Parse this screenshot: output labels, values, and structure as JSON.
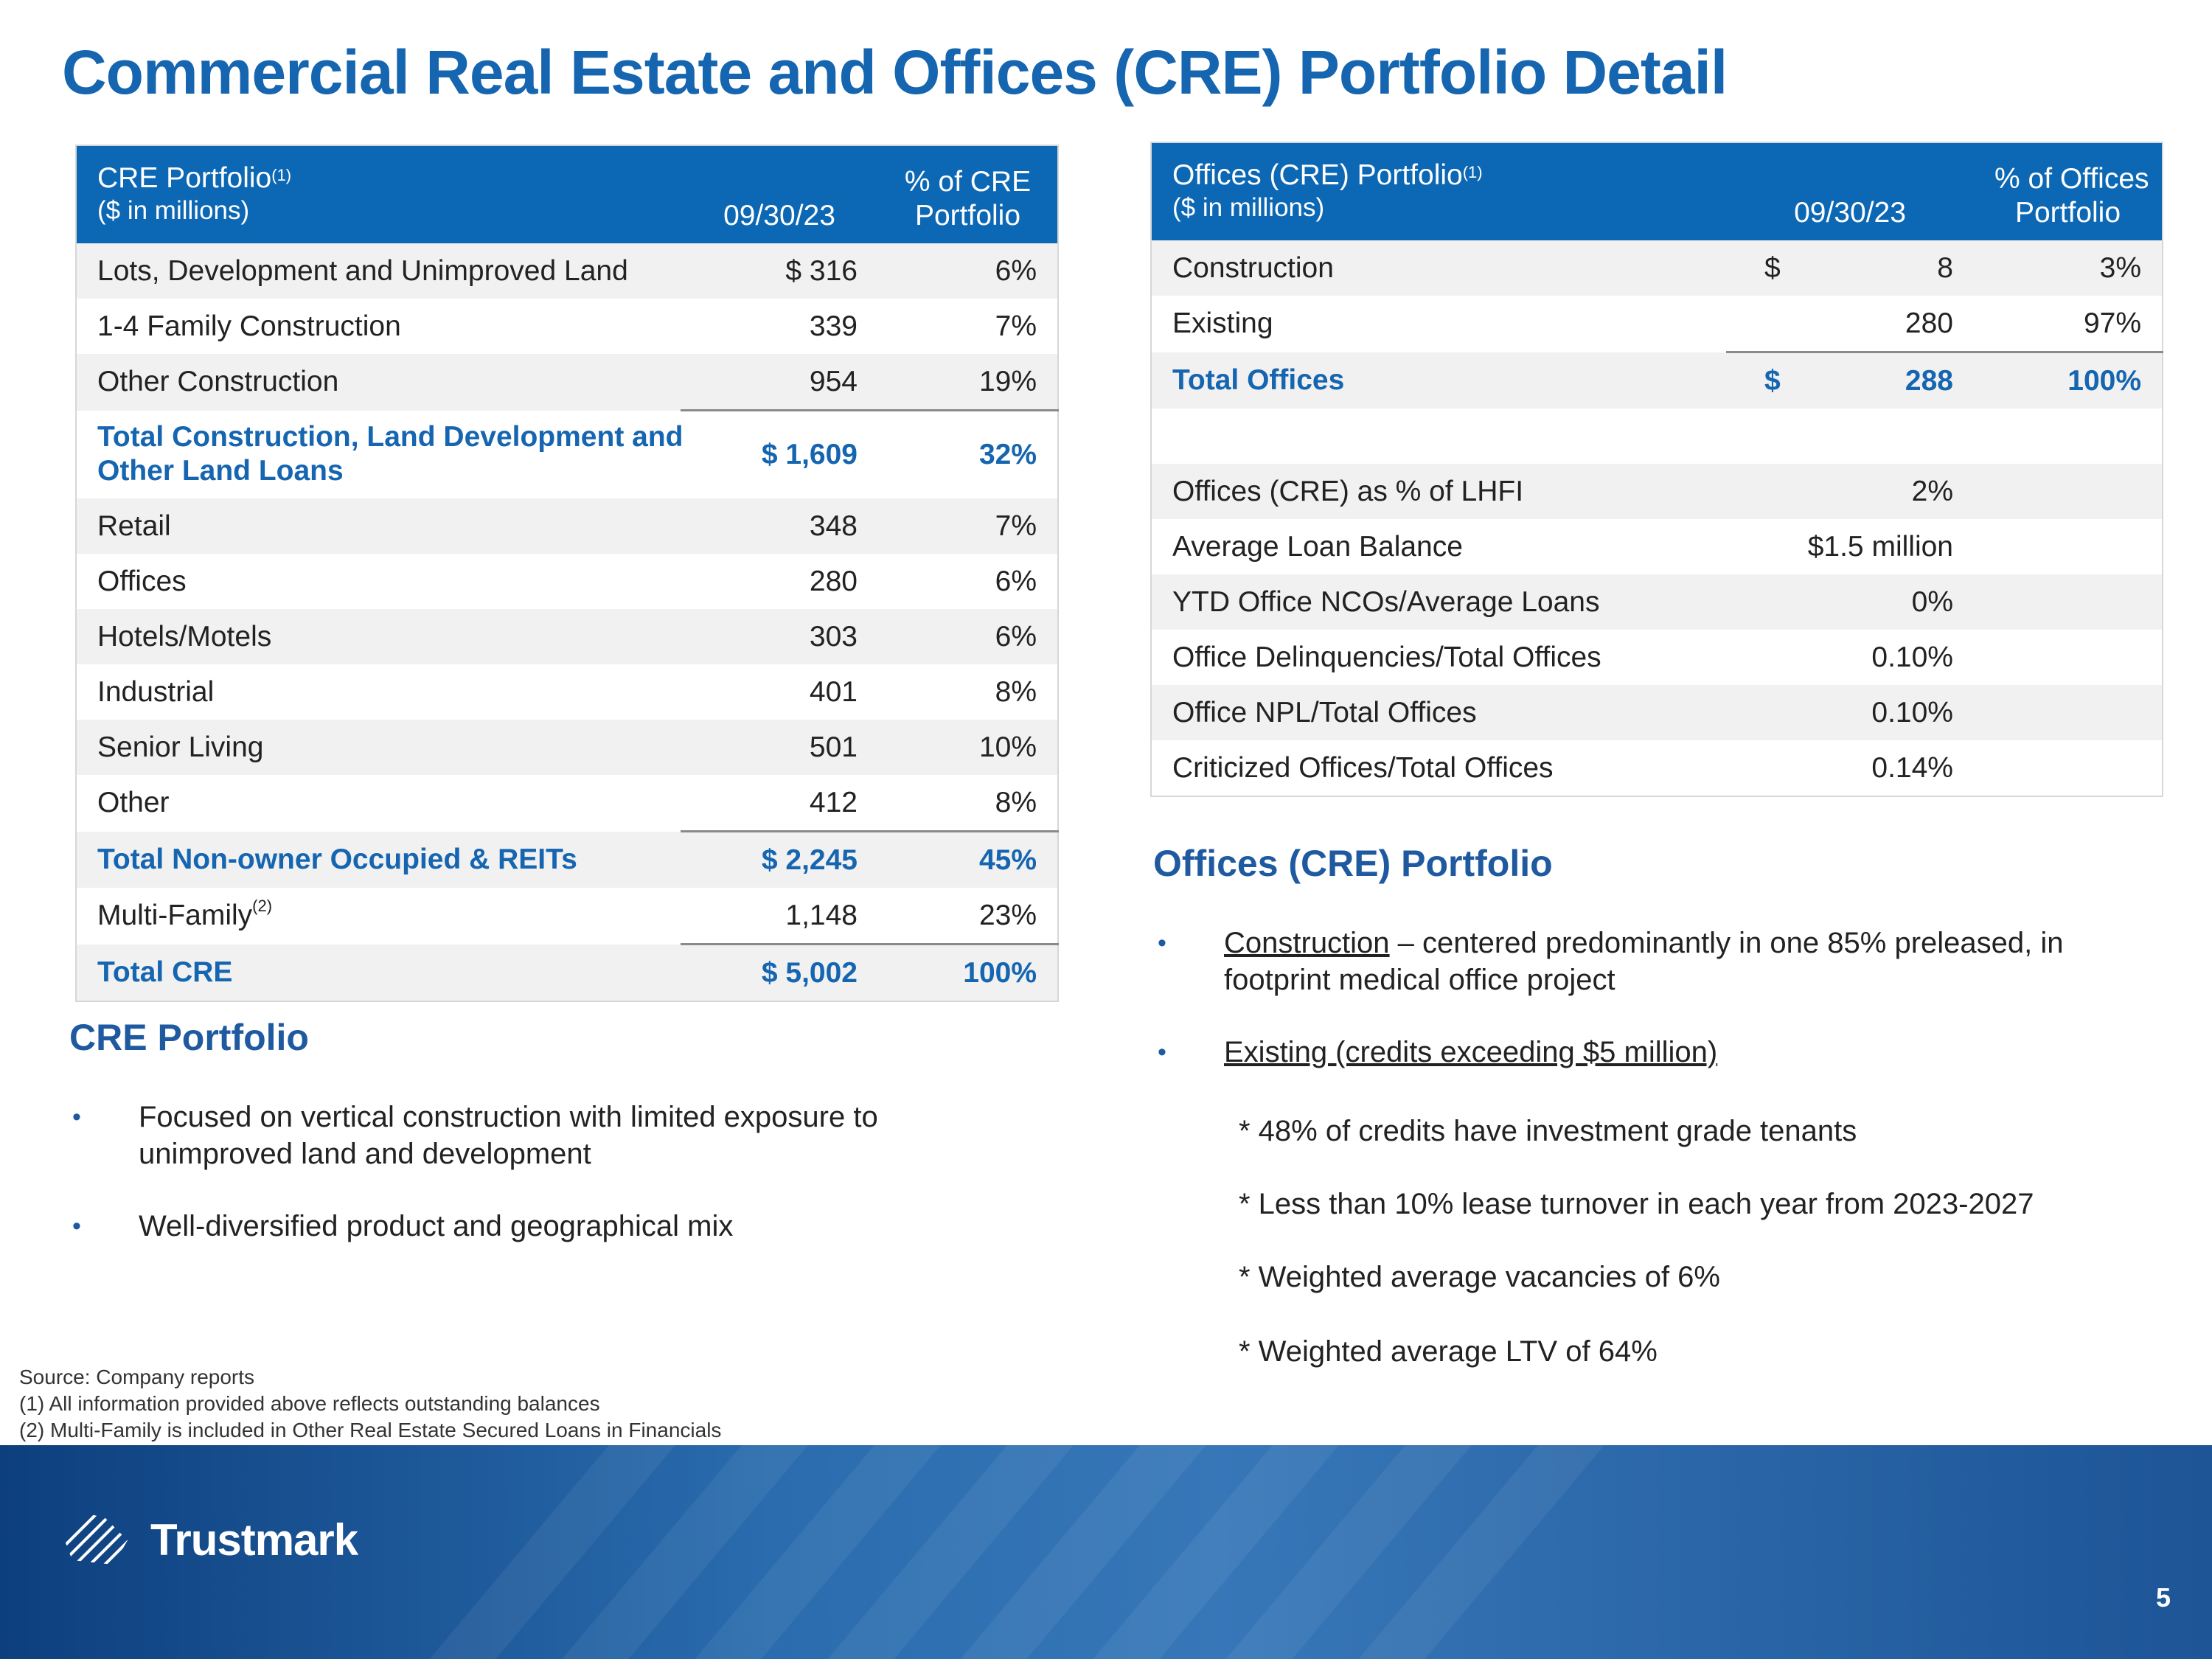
{
  "title": "Commercial Real Estate and Offices (CRE) Portfolio Detail",
  "cre_table": {
    "header": {
      "title": "CRE Portfolio",
      "sup": "(1)",
      "subtitle": "($ in millions)",
      "col_date": "09/30/23",
      "col_pct_line1": "% of CRE",
      "col_pct_line2": "Portfolio"
    },
    "rows": [
      {
        "label": "Lots, Development and Unimproved Land",
        "value": "$ 316",
        "pct": "6%"
      },
      {
        "label": "1-4 Family Construction",
        "value": "339",
        "pct": "7%"
      },
      {
        "label": "Other Construction",
        "value": "954",
        "pct": "19%"
      },
      {
        "label_line1": "Total Construction, Land Development and",
        "label_line2": "Other Land Loans",
        "value": "$ 1,609",
        "pct": "32%"
      },
      {
        "label": "Retail",
        "value": "348",
        "pct": "7%"
      },
      {
        "label": "Offices",
        "value": "280",
        "pct": "6%"
      },
      {
        "label": "Hotels/Motels",
        "value": "303",
        "pct": "6%"
      },
      {
        "label": "Industrial",
        "value": "401",
        "pct": "8%"
      },
      {
        "label": "Senior Living",
        "value": "501",
        "pct": "10%"
      },
      {
        "label": "Other",
        "value": "412",
        "pct": "8%"
      },
      {
        "label": "Total Non-owner Occupied & REITs",
        "value": "$ 2,245",
        "pct": "45%"
      },
      {
        "label": "Multi-Family",
        "sup": "(2)",
        "value": "1,148",
        "pct": "23%"
      },
      {
        "label": "Total CRE",
        "value": "$ 5,002",
        "pct": "100%"
      }
    ]
  },
  "offices_table": {
    "header": {
      "title": "Offices (CRE) Portfolio",
      "sup": "(1)",
      "subtitle": "($ in millions)",
      "col_date": "09/30/23",
      "col_pct_line1": "% of Offices",
      "col_pct_line2": "Portfolio"
    },
    "rows": [
      {
        "label": "Construction",
        "dollar": "$",
        "value": "8",
        "pct": "3%"
      },
      {
        "label": "Existing",
        "dollar": "",
        "value": "280",
        "pct": "97%"
      },
      {
        "label": "Total Offices",
        "dollar": "$",
        "value": "288",
        "pct": "100%"
      },
      {
        "label": "",
        "dollar": "",
        "value": "",
        "pct": ""
      },
      {
        "label": "Offices (CRE) as % of LHFI",
        "value": "2%"
      },
      {
        "label": "Average Loan Balance",
        "value": "$1.5 million"
      },
      {
        "label": "YTD Office NCOs/Average Loans",
        "value": "0%"
      },
      {
        "label": "Office Delinquencies/Total Offices",
        "value": "0.10%"
      },
      {
        "label": "Office NPL/Total Offices",
        "value": "0.10%"
      },
      {
        "label": "Criticized Offices/Total Offices",
        "value": "0.14%"
      }
    ]
  },
  "cre_portfolio": {
    "heading": "CRE Portfolio",
    "bullet_symbol": "•",
    "bullets": [
      {
        "line1": "Focused on vertical construction with limited exposure to",
        "line2": "unimproved land and development"
      },
      {
        "line1": "Well-diversified product and geographical mix"
      }
    ]
  },
  "offices_portfolio": {
    "heading": "Offices (CRE) Portfolio",
    "bullet_symbol": "•",
    "bullet1_underlined": "Construction",
    "bullet1_rest": " – centered predominantly in one 85% preleased, in",
    "bullet1_line2": "footprint medical office project",
    "bullet2_underlined": "Existing (credits exceeding $5 million)",
    "sub_items": [
      "* 48% of credits have investment grade tenants",
      "*  Less than 10% lease turnover in each year from 2023-2027",
      "*  Weighted average vacancies of 6%",
      "*  Weighted average LTV of 64%"
    ]
  },
  "source_notes": [
    "Source: Company reports",
    "(1) All information provided above reflects outstanding balances",
    "(2) Multi-Family is included in Other Real Estate Secured  Loans in Financials"
  ],
  "footer": {
    "logo_text": "Trustmark",
    "logo_icon": "trustmark-logo-icon",
    "page_number": "5"
  },
  "colors": {
    "brand_blue": "#1565b0",
    "header_blue": "#0c68b4",
    "footer_blue": "#2a6cae"
  }
}
